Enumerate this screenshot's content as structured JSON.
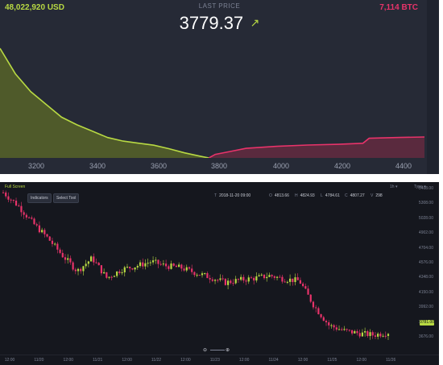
{
  "depth": {
    "usd_total": "48,022,920 USD",
    "btc_total": "7,114 BTC",
    "last_price_label": "LAST PRICE",
    "last_price": "3779.37",
    "arrow": "↗",
    "x_ticks": [
      "3200",
      "3400",
      "3600",
      "3800",
      "4000",
      "4200",
      "4400"
    ],
    "colors": {
      "bid": "#b8d943",
      "ask": "#e8336a",
      "bg": "#262a36"
    }
  },
  "candles": {
    "fullscreen_label": "Full Screen",
    "indicators_label": "Indicators",
    "select_tool_label": "Select Tool",
    "ohlc": {
      "time_label": "T",
      "time": "2018-11-20 09:00",
      "open_label": "O",
      "open": "4813.66",
      "high_label": "H",
      "high": "4824.93",
      "low_label": "L",
      "low": "4784.61",
      "close_label": "C",
      "close": "4807.27",
      "vol_label": "V",
      "vol": "298"
    },
    "top_right": {
      "interval": "1h ▾",
      "type": "Type ▾"
    },
    "y_ticks": [
      "5408.00",
      "5308.00",
      "5028.00",
      "4902.00",
      "4704.00",
      "4576.00",
      "4348.00",
      "4150.00",
      "3992.00",
      "3860.00",
      "3676.00"
    ],
    "price_tag": "3781.00",
    "x_ticks": [
      "12:00",
      "11/20",
      "12:00",
      "11/21",
      "12:00",
      "11/22",
      "12:00",
      "11/23",
      "12:00",
      "11/24",
      "12:00",
      "11/25",
      "12:00",
      "11/26"
    ],
    "zoom_out": "⊖",
    "zoom_in": "⊕",
    "colors": {
      "up": "#b8d943",
      "down": "#e8336a",
      "bg": "#15171e"
    }
  },
  "chart_data": [
    {
      "type": "area",
      "title": "",
      "xlabel": "",
      "ylabel": "",
      "xlim": [
        3100,
        4480
      ],
      "series": [
        {
          "name": "",
          "x": [
            3100,
            3150,
            3200,
            3250,
            3300,
            3350,
            3400,
            3450,
            3500,
            3550,
            3600,
            3650,
            3700,
            3750,
            3779
          ],
          "y": [
            43000000,
            33000000,
            26000000,
            21000000,
            16000000,
            13000000,
            10500000,
            8000000,
            6600000,
            5800000,
            5000000,
            3600000,
            2000000,
            700000,
            0
          ]
        },
        {
          "name": "",
          "x": [
            3779,
            3800,
            3850,
            3900,
            4000,
            4100,
            4200,
            4280,
            4300,
            4400,
            4480
          ],
          "y": [
            0,
            700,
            1300,
            1900,
            2300,
            2550,
            2700,
            2900,
            3900,
            4050,
            4150
          ]
        }
      ]
    },
    {
      "type": "line",
      "title": "",
      "xlabel": "",
      "ylabel": "",
      "xlim": [
        "11/19 12:00",
        "11/26 00:00"
      ],
      "ylim": [
        3676,
        5408
      ],
      "series": [
        {
          "name": "",
          "x": [
            "11/19 12:00",
            "11/19 18:00",
            "11/20 00:00",
            "11/20 06:00",
            "11/20 12:00",
            "11/21 00:00",
            "11/21 06:00",
            "11/21 12:00",
            "11/21 18:00",
            "11/22 00:00",
            "11/22 06:00",
            "11/22 12:00",
            "11/22 18:00",
            "11/23 00:00",
            "11/23 06:00",
            "11/23 12:00",
            "11/23 18:00",
            "11/24 00:00",
            "11/24 06:00",
            "11/24 12:00",
            "11/24 18:00",
            "11/25 00:00",
            "11/25 03:00",
            "11/25 06:00",
            "11/25 12:00",
            "11/25 18:00",
            "11/26 00:00"
          ],
          "y": [
            5400,
            5250,
            5050,
            4880,
            4680,
            4500,
            4650,
            4420,
            4520,
            4560,
            4610,
            4560,
            4540,
            4480,
            4430,
            4370,
            4400,
            4420,
            4450,
            4410,
            4390,
            4100,
            3880,
            3820,
            3790,
            3770,
            3800
          ]
        }
      ]
    }
  ]
}
